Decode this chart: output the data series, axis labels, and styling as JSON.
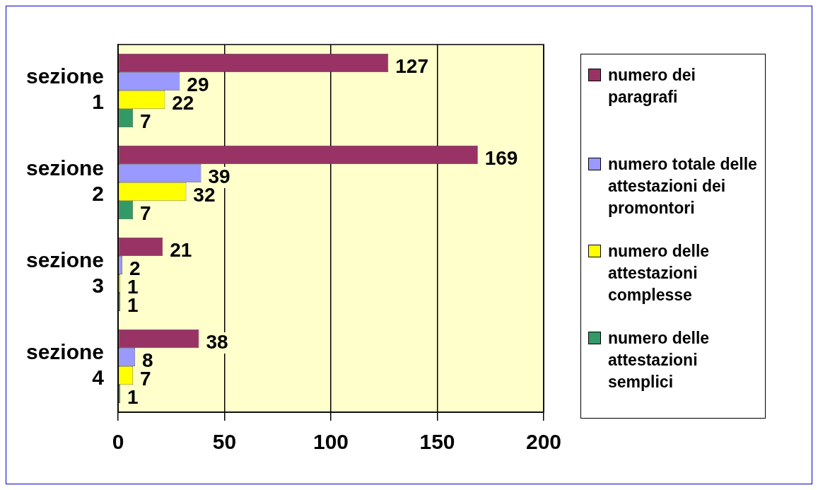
{
  "chart_data": {
    "type": "bar",
    "orientation": "horizontal",
    "categories": [
      "sezione 1",
      "sezione 2",
      "sezione 3",
      "sezione 4"
    ],
    "series": [
      {
        "name": "numero dei paragrafi",
        "color": "#993366",
        "values": [
          127,
          169,
          21,
          38
        ]
      },
      {
        "name": "numero totale delle attestazioni dei promontori",
        "color": "#9999ff",
        "values": [
          29,
          39,
          2,
          8
        ]
      },
      {
        "name": "numero delle attestazioni complesse",
        "color": "#ffff00",
        "values": [
          22,
          32,
          1,
          7
        ]
      },
      {
        "name": "numero delle attestazioni semplici",
        "color": "#339966",
        "values": [
          7,
          7,
          1,
          1
        ]
      }
    ],
    "xlim": [
      0,
      200
    ],
    "xticks": [
      0,
      50,
      100,
      150,
      200
    ],
    "grid": "x",
    "legend": "right",
    "data_labels": true
  }
}
